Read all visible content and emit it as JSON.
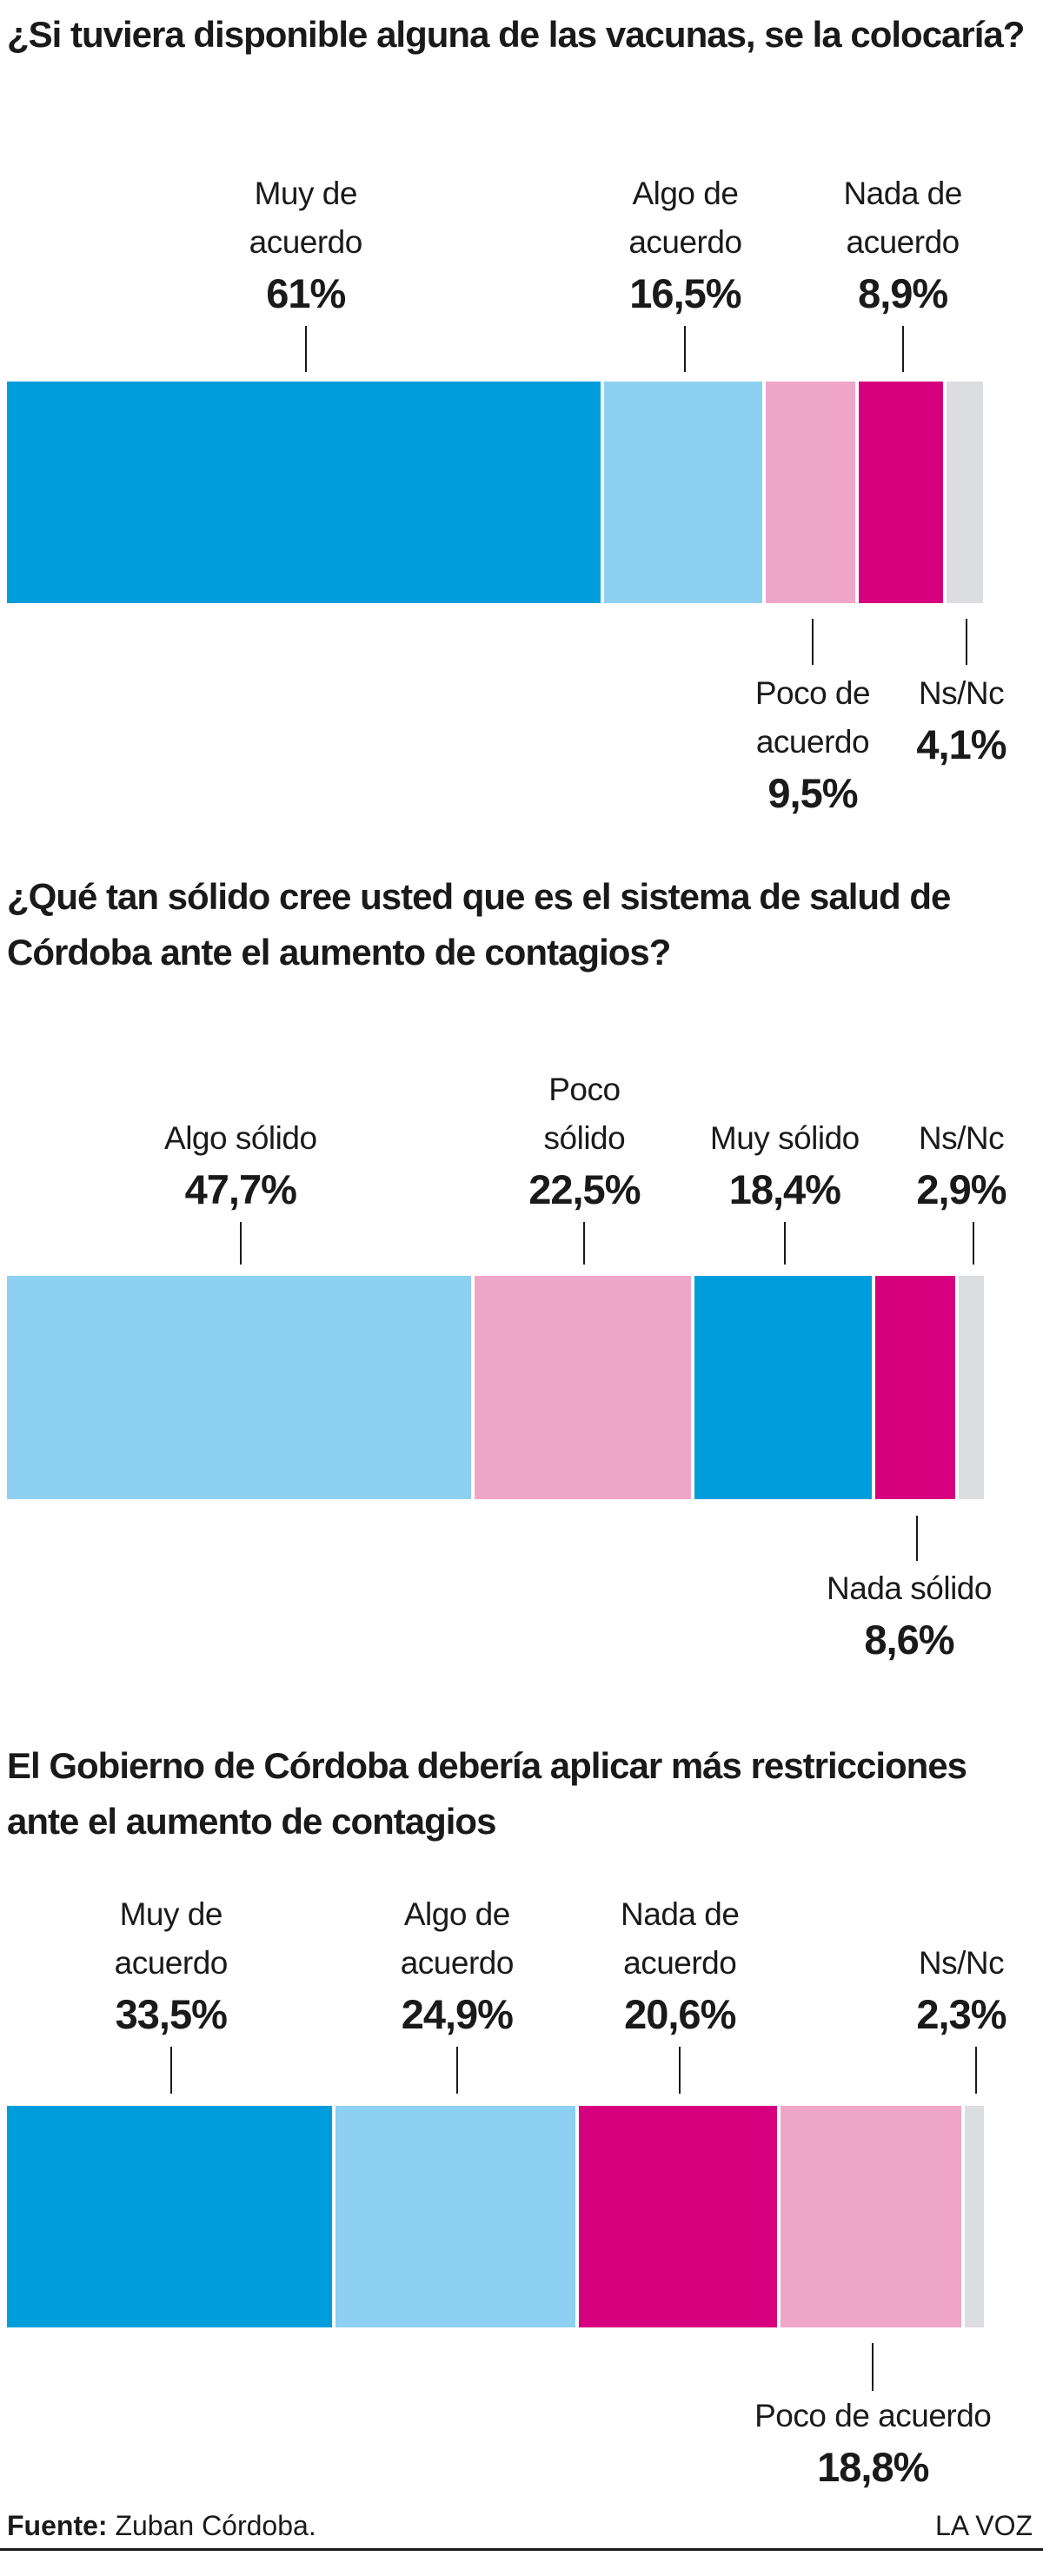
{
  "chart_data": [
    {
      "type": "stacked-bar",
      "title": "¿Si tuviera disponible alguna de las vacunas, se la colocaría?",
      "categories": [
        "Muy de acuerdo",
        "Algo de acuerdo",
        "Poco de acuerdo",
        "Nada de acuerdo",
        "Ns/Nc"
      ],
      "values": [
        61,
        16.5,
        9.5,
        8.9,
        4.1
      ],
      "value_labels": [
        "61%",
        "16,5%",
        "9,5%",
        "8,9%",
        "4,1%"
      ],
      "colors": [
        "#009ddc",
        "#8dd0f2",
        "#f0a6c8",
        "#d6007e",
        "#dcdde1"
      ],
      "xlim": [
        0,
        100
      ]
    },
    {
      "type": "stacked-bar",
      "title": "¿Qué tan sólido cree usted que es el sistema de salud de Córdoba ante el aumento de contagios?",
      "categories": [
        "Algo sólido",
        "Poco sólido",
        "Muy sólido",
        "Nada sólido",
        "Ns/Nc"
      ],
      "values": [
        47.7,
        22.5,
        18.4,
        8.6,
        2.9
      ],
      "value_labels": [
        "47,7%",
        "22,5%",
        "18,4%",
        "8,6%",
        "2,9%"
      ],
      "colors": [
        "#8dd0f2",
        "#f0a6c8",
        "#009ddc",
        "#d6007e",
        "#dcdde1"
      ],
      "xlim": [
        0,
        100
      ]
    },
    {
      "type": "stacked-bar",
      "title": "El Gobierno de Córdoba debería aplicar más restricciones ante el aumento de contagios",
      "categories": [
        "Muy de acuerdo",
        "Algo de acuerdo",
        "Nada de acuerdo",
        "Poco de acuerdo",
        "Ns/Nc"
      ],
      "values": [
        33.5,
        24.9,
        20.6,
        18.8,
        2.3
      ],
      "value_labels": [
        "33,5%",
        "24,9%",
        "20,6%",
        "18,8%",
        "2,3%"
      ],
      "colors": [
        "#009ddc",
        "#8dd0f2",
        "#d6007e",
        "#f0a6c8",
        "#dcdde1"
      ],
      "xlim": [
        0,
        100
      ]
    }
  ],
  "footer": {
    "source_label": "Fuente:",
    "source": "Zuban Córdoba.",
    "brand": "LA VOZ"
  }
}
